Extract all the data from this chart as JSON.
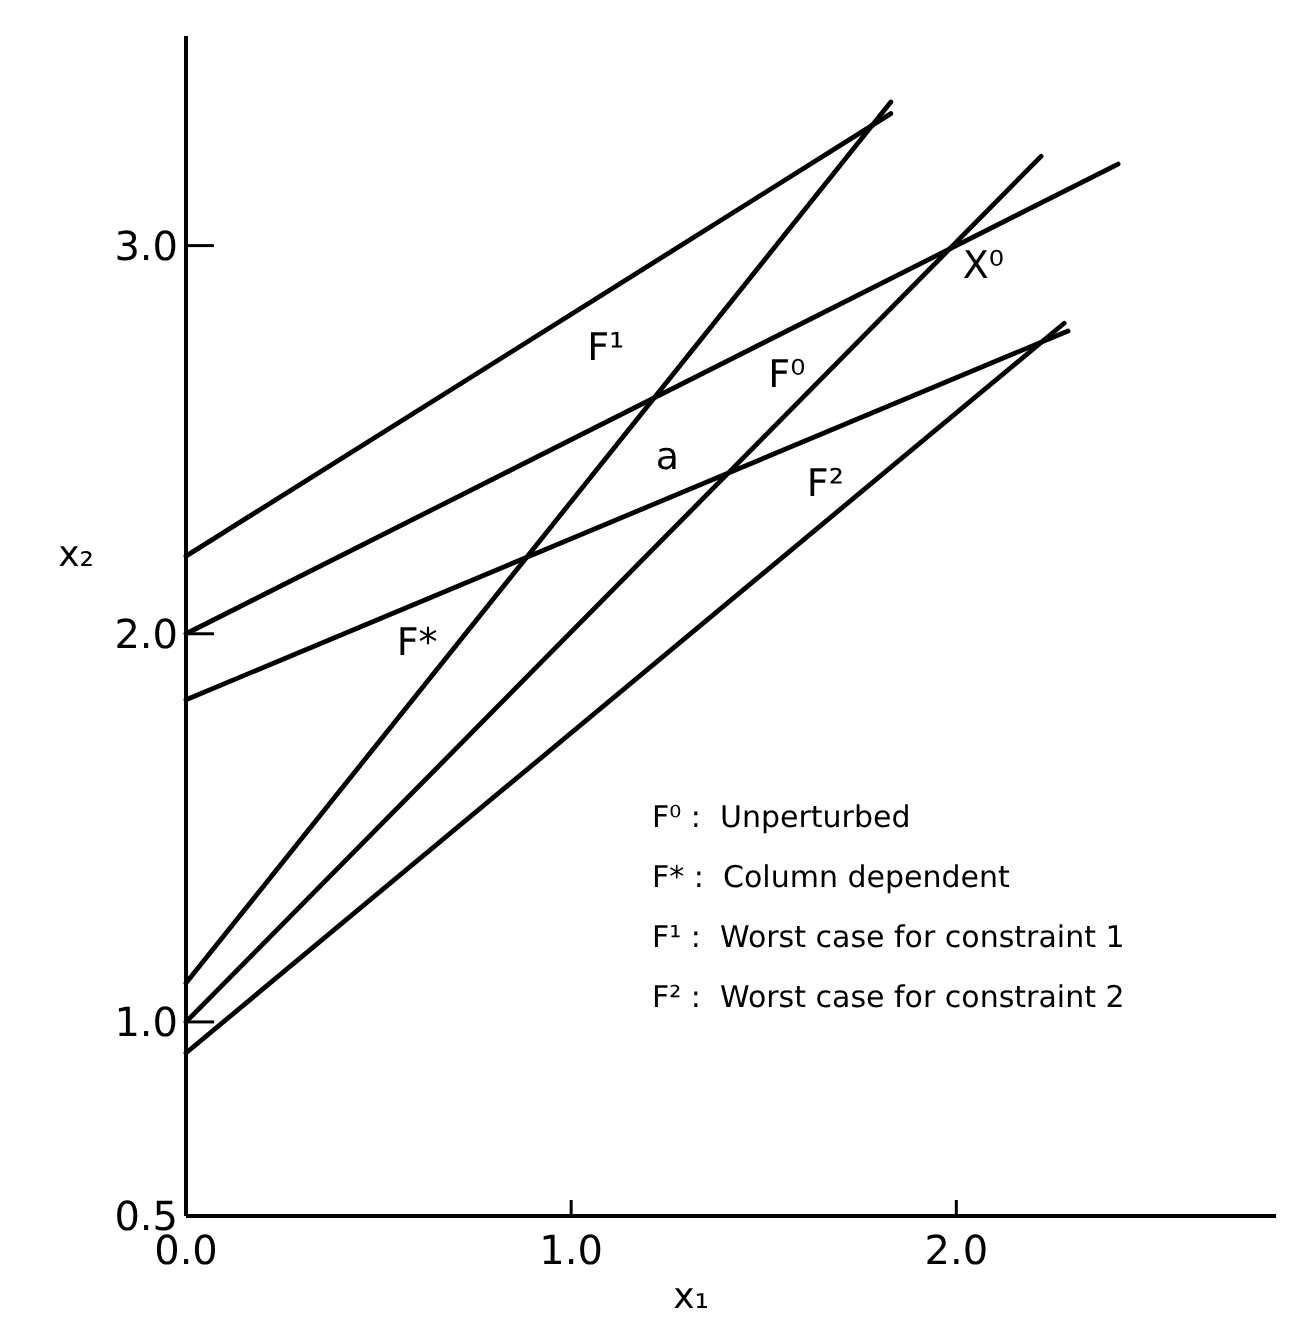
{
  "chart_data": {
    "type": "line",
    "xlabel": "x₁",
    "ylabel": "x₂",
    "xlim": [
      0,
      2.83
    ],
    "ylim": [
      0.5,
      3.54
    ],
    "xticks": [
      {
        "value": 0,
        "label": "0.0"
      },
      {
        "value": 1,
        "label": "1.0"
      },
      {
        "value": 2,
        "label": "2.0"
      }
    ],
    "yticks": [
      {
        "value": 0.5,
        "label": "0.5"
      },
      {
        "value": 1,
        "label": "1.0"
      },
      {
        "value": 2,
        "label": "2.0"
      },
      {
        "value": 3,
        "label": "3.0"
      }
    ],
    "grid": false,
    "marker": "none",
    "line_style": "solid",
    "series": [
      {
        "color": "#000000",
        "x": [
          0,
          1.83
        ],
        "values": [
          2.2,
          3.34
        ]
      },
      {
        "color": "#000000",
        "x": [
          0,
          1.83
        ],
        "values": [
          1.1,
          3.37
        ]
      },
      {
        "color": "#000000",
        "x": [
          0,
          2.42
        ],
        "values": [
          2.0,
          3.21
        ]
      },
      {
        "color": "#000000",
        "x": [
          0,
          2.22
        ],
        "values": [
          1.0,
          3.23
        ]
      },
      {
        "color": "#000000",
        "x": [
          0,
          2.29
        ],
        "values": [
          1.83,
          2.78
        ]
      },
      {
        "color": "#000000",
        "x": [
          0,
          2.28
        ],
        "values": [
          0.92,
          2.8
        ]
      }
    ],
    "annotations": [
      "F¹",
      "F⁰",
      "a",
      "X⁰",
      "F*",
      "F²",
      "F⁰ :  Unperturbed",
      "F* :  Column dependent",
      "F¹ :  Worst case for constraint 1",
      "F² :  Worst case for constraint 2"
    ]
  }
}
